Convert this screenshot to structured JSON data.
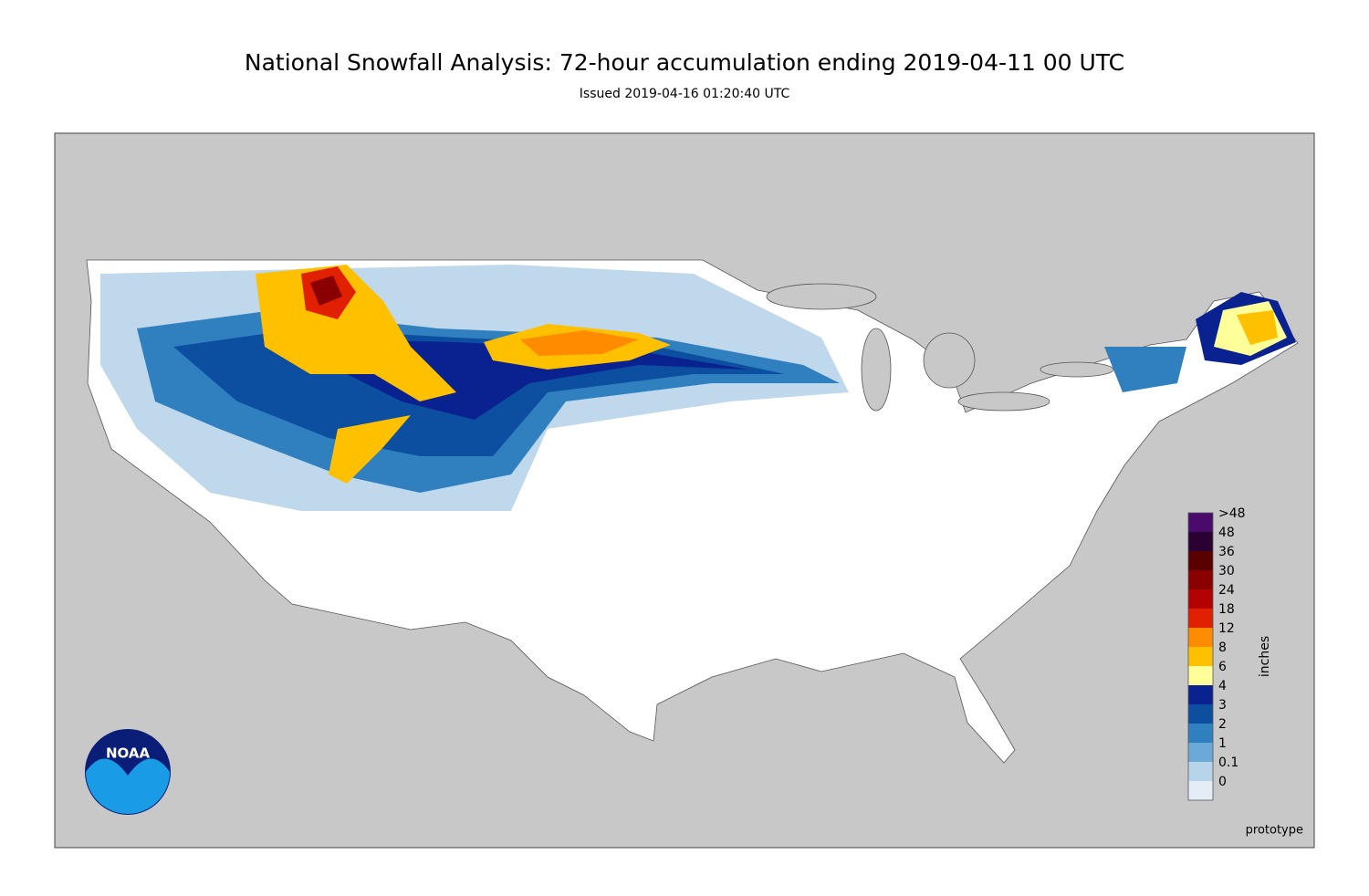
{
  "header": {
    "title": "National Snowfall Analysis: 72-hour accumulation ending 2019-04-11 00 UTC",
    "subtitle": "Issued 2019-04-16 01:20:40 UTC"
  },
  "legend": {
    "label": "inches",
    "items": [
      {
        "label": ">48",
        "color": "#4a0a6b"
      },
      {
        "label": "48",
        "color": "#2b0033"
      },
      {
        "label": "36",
        "color": "#5a0000"
      },
      {
        "label": "30",
        "color": "#8a0000"
      },
      {
        "label": "24",
        "color": "#b30000"
      },
      {
        "label": "18",
        "color": "#e02000"
      },
      {
        "label": "12",
        "color": "#ff8c00"
      },
      {
        "label": "8",
        "color": "#ffc000"
      },
      {
        "label": "6",
        "color": "#ffff99"
      },
      {
        "label": "4",
        "color": "#0a2290"
      },
      {
        "label": "3",
        "color": "#0c4fa0"
      },
      {
        "label": "2",
        "color": "#3080c0"
      },
      {
        "label": "1",
        "color": "#6aa9d8"
      },
      {
        "label": "0.1",
        "color": "#b8d4ea"
      },
      {
        "label": "0",
        "color": "#e4edf6"
      }
    ]
  },
  "footer": {
    "note": "prototype"
  },
  "logo": {
    "text": "NOAA"
  }
}
